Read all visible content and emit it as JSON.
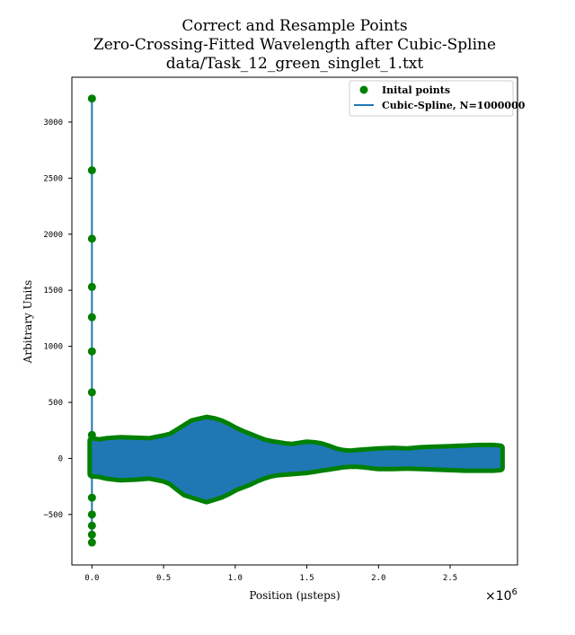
{
  "chart_data": {
    "type": "line",
    "title_lines": [
      "Correct and Resample Points",
      "Zero-Crossing-Fitted Wavelength after Cubic-Spline",
      "data/Task_12_green_singlet_1.txt"
    ],
    "xlabel": "Position (μsteps)",
    "ylabel": "Arbitrary Units",
    "x_offset_label": "×10",
    "x_offset_exponent": "6",
    "xlim": [
      -0.14,
      2.97
    ],
    "ylim": [
      -950,
      3400
    ],
    "x_ticks": [
      0.0,
      0.5,
      1.0,
      1.5,
      2.0,
      2.5
    ],
    "x_tick_labels": [
      "0.0",
      "0.5",
      "1.0",
      "1.5",
      "2.0",
      "2.5"
    ],
    "y_ticks": [
      -500,
      0,
      500,
      1000,
      1500,
      2000,
      2500,
      3000
    ],
    "y_tick_labels": [
      "−500",
      "0",
      "500",
      "1000",
      "1500",
      "2000",
      "2500",
      "3000"
    ],
    "legend_position": "top-right",
    "series": [
      {
        "name": "Inital points",
        "kind": "scatter",
        "color": "#008000",
        "spike_points": [
          [
            0.0,
            3210
          ],
          [
            0.0,
            2570
          ],
          [
            0.0,
            1960
          ],
          [
            0.0,
            1530
          ],
          [
            0.0,
            1260
          ],
          [
            0.0,
            955
          ],
          [
            0.0,
            590
          ],
          [
            0.0,
            210
          ],
          [
            0.0,
            -350
          ],
          [
            0.0,
            -500
          ],
          [
            0.0,
            -600
          ],
          [
            0.0,
            -680
          ],
          [
            0.0,
            -750
          ]
        ],
        "envelope_x": [
          0.0,
          0.05,
          0.1,
          0.2,
          0.3,
          0.4,
          0.5,
          0.55,
          0.6,
          0.65,
          0.7,
          0.75,
          0.8,
          0.85,
          0.9,
          0.95,
          1.0,
          1.05,
          1.1,
          1.15,
          1.2,
          1.25,
          1.3,
          1.35,
          1.4,
          1.45,
          1.5,
          1.55,
          1.6,
          1.65,
          1.7,
          1.75,
          1.8,
          1.85,
          1.9,
          2.0,
          2.1,
          2.2,
          2.3,
          2.4,
          2.5,
          2.6,
          2.7,
          2.8,
          2.85
        ],
        "envelope_upper": [
          160,
          150,
          160,
          170,
          165,
          160,
          185,
          200,
          240,
          280,
          320,
          335,
          350,
          340,
          320,
          290,
          255,
          225,
          200,
          175,
          150,
          135,
          125,
          115,
          110,
          120,
          130,
          125,
          115,
          95,
          70,
          55,
          50,
          55,
          60,
          70,
          75,
          70,
          80,
          85,
          90,
          95,
          100,
          100,
          95
        ],
        "envelope_lower": [
          -140,
          -145,
          -160,
          -175,
          -170,
          -160,
          -185,
          -210,
          -260,
          -310,
          -330,
          -350,
          -370,
          -350,
          -330,
          -300,
          -265,
          -240,
          -215,
          -185,
          -160,
          -140,
          -130,
          -125,
          -120,
          -115,
          -110,
          -100,
          -90,
          -80,
          -70,
          -60,
          -55,
          -55,
          -60,
          -75,
          -75,
          -70,
          -75,
          -80,
          -85,
          -90,
          -90,
          -90,
          -85
        ]
      },
      {
        "name": "Cubic-Spline, N=1000000",
        "kind": "line",
        "color": "#1f77b4",
        "spike_range": [
          -750,
          3210
        ]
      }
    ]
  }
}
